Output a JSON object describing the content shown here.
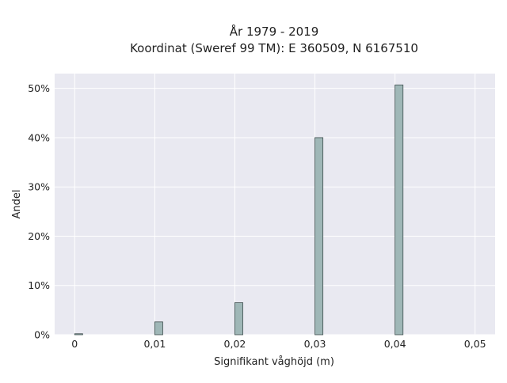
{
  "chart_data": {
    "type": "bar",
    "title_lines": [
      "År 1979 - 2019",
      "Koordinat (Sweref 99 TM): E 360509, N 6167510"
    ],
    "xlabel": "Signifikant våghöjd (m)",
    "ylabel": "Andel",
    "x_ticks": [
      "0",
      "0,01",
      "0,02",
      "0,03",
      "0,04",
      "0,05"
    ],
    "x_tick_values": [
      0,
      0.01,
      0.02,
      0.03,
      0.04,
      0.05
    ],
    "y_ticks": [
      "0%",
      "10%",
      "20%",
      "30%",
      "40%",
      "50%"
    ],
    "y_tick_values": [
      0,
      10,
      20,
      30,
      40,
      50
    ],
    "xlim": [
      -0.0025,
      0.0525
    ],
    "ylim": [
      0,
      53
    ],
    "bar_width": 0.001,
    "bars": [
      {
        "x": 0.0005,
        "value": 0.2
      },
      {
        "x": 0.0105,
        "value": 2.6
      },
      {
        "x": 0.0205,
        "value": 6.5
      },
      {
        "x": 0.0305,
        "value": 40.0
      },
      {
        "x": 0.0405,
        "value": 50.7
      }
    ],
    "grid": true,
    "legend": "none",
    "colors": {
      "bar_fill": "#9fb7b7",
      "bar_edge": "#3d4d4d",
      "plot_background": "#e9e9f1",
      "grid": "#ffffff"
    }
  }
}
